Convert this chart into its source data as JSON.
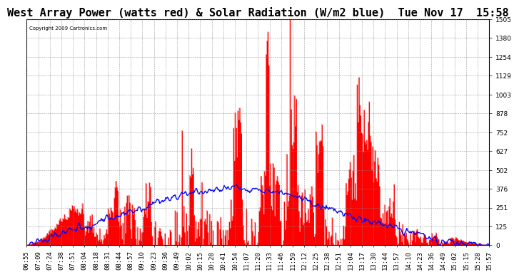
{
  "title": "West Array Power (watts red) & Solar Radiation (W/m2 blue)  Tue Nov 17  15:58",
  "copyright": "Copyright 2009 Cartronics.com",
  "ymin": 0.0,
  "ymax": 1505.1,
  "yticks": [
    0.0,
    125.4,
    250.8,
    376.3,
    501.7,
    627.1,
    752.5,
    878.0,
    1003.4,
    1128.8,
    1254.2,
    1379.7,
    1505.1
  ],
  "background_color": "#ffffff",
  "plot_bg_color": "#ffffff",
  "grid_color": "#888888",
  "red_color": "#ff0000",
  "blue_color": "#0000ff",
  "title_fontsize": 11,
  "tick_fontsize": 6.5
}
